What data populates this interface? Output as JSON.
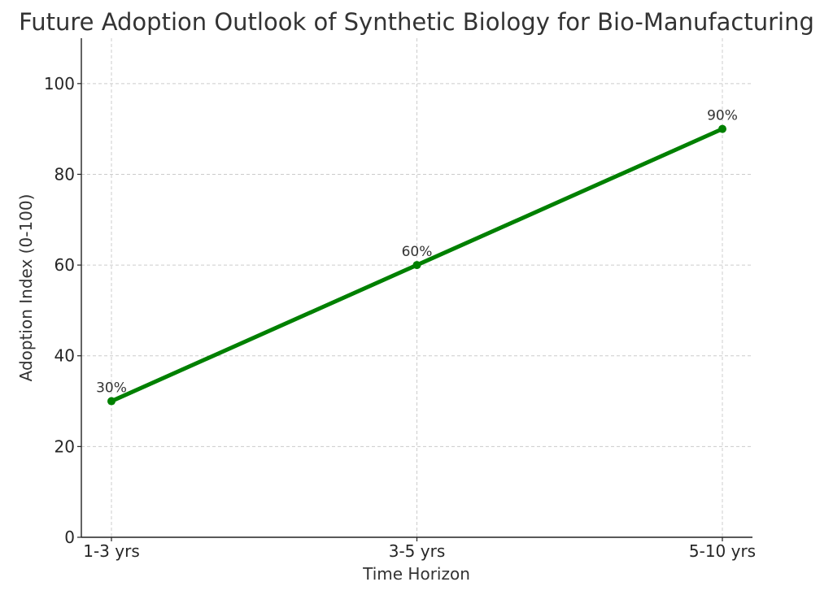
{
  "chart_data": {
    "type": "line",
    "title": "Future Adoption Outlook of Synthetic Biology for Bio-Manufacturing",
    "xlabel": "Time Horizon",
    "ylabel": "Adoption Index (0-100)",
    "categories": [
      "1-3 yrs",
      "3-5 yrs",
      "5-10 yrs"
    ],
    "series": [
      {
        "values": [
          30,
          60,
          90
        ],
        "labels": [
          "30%",
          "60%",
          "90%"
        ],
        "color": "#008000"
      }
    ],
    "ylim": [
      0,
      110
    ],
    "yticks": [
      0,
      20,
      40,
      60,
      80,
      100
    ],
    "ytick_labels": [
      "0",
      "20",
      "40",
      "60",
      "80",
      "100"
    ],
    "grid": true,
    "marker": "circle"
  }
}
